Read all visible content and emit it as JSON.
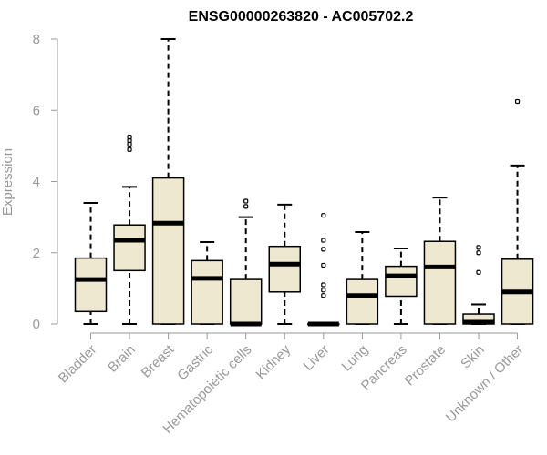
{
  "chart_data": {
    "type": "boxplot",
    "title": "ENSG00000263820 - AC005702.2",
    "ylabel": "Expression",
    "xlabel": "",
    "ylim": [
      0,
      8
    ],
    "yticks": [
      0,
      2,
      4,
      6,
      8
    ],
    "box_fill": "#efe8d0",
    "categories": [
      "Bladder",
      "Brain",
      "Breast",
      "Gastric",
      "Hematopoietic cells",
      "Kidney",
      "Liver",
      "Lung",
      "Pancreas",
      "Prostate",
      "Skin",
      "Unknown / Other"
    ],
    "boxes": [
      {
        "min": 0.0,
        "q1": 0.35,
        "median": 1.25,
        "q3": 1.85,
        "max": 3.4,
        "outliers": []
      },
      {
        "min": 0.0,
        "q1": 1.5,
        "median": 2.35,
        "q3": 2.78,
        "max": 3.85,
        "outliers": [
          4.9,
          5.05,
          5.15,
          5.25
        ]
      },
      {
        "min": 0.0,
        "q1": 0.0,
        "median": 2.83,
        "q3": 4.1,
        "max": 8.0,
        "outliers": []
      },
      {
        "min": 0.0,
        "q1": 0.0,
        "median": 1.28,
        "q3": 1.78,
        "max": 2.3,
        "outliers": []
      },
      {
        "min": 0.0,
        "q1": 0.0,
        "median": 0.0,
        "q3": 1.25,
        "max": 3.0,
        "outliers": [
          3.3,
          3.45
        ]
      },
      {
        "min": 0.0,
        "q1": 0.9,
        "median": 1.68,
        "q3": 2.18,
        "max": 3.35,
        "outliers": []
      },
      {
        "min": 0.0,
        "q1": 0.0,
        "median": 0.0,
        "q3": 0.0,
        "max": 0.0,
        "outliers": [
          0.8,
          0.95,
          1.1,
          1.65,
          2.1,
          2.35,
          3.05
        ]
      },
      {
        "min": 0.0,
        "q1": 0.0,
        "median": 0.8,
        "q3": 1.25,
        "max": 2.58,
        "outliers": []
      },
      {
        "min": 0.0,
        "q1": 0.78,
        "median": 1.35,
        "q3": 1.62,
        "max": 2.12,
        "outliers": []
      },
      {
        "min": 0.0,
        "q1": 0.0,
        "median": 1.6,
        "q3": 2.32,
        "max": 3.55,
        "outliers": []
      },
      {
        "min": 0.0,
        "q1": 0.0,
        "median": 0.05,
        "q3": 0.28,
        "max": 0.55,
        "outliers": [
          1.45,
          2.0,
          2.15
        ]
      },
      {
        "min": 0.0,
        "q1": 0.0,
        "median": 0.9,
        "q3": 1.82,
        "max": 4.45,
        "outliers": [
          6.25
        ]
      }
    ]
  }
}
